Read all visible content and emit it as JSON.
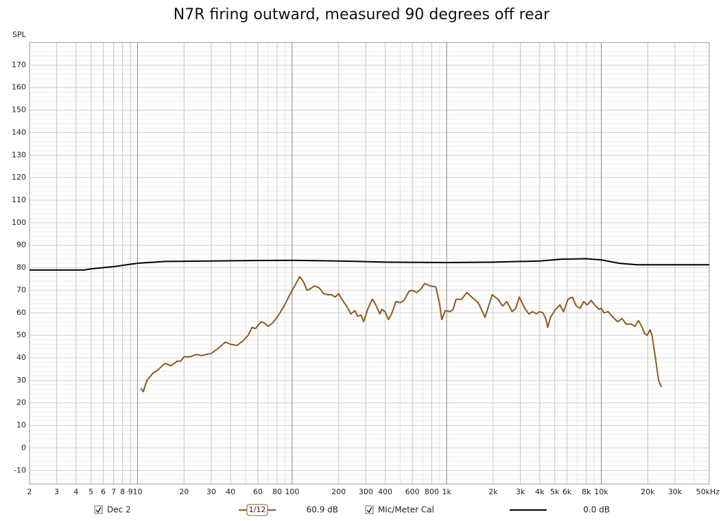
{
  "chart_data": {
    "type": "line",
    "title": "N7R firing outward, measured 90 degrees off rear",
    "y_label": "SPL",
    "log_x": true,
    "grid": true,
    "xlim": [
      2,
      50000
    ],
    "ylim": [
      -16,
      180
    ],
    "yticks": [
      -10,
      0,
      10,
      20,
      30,
      40,
      50,
      60,
      70,
      80,
      90,
      100,
      110,
      120,
      130,
      140,
      150,
      160,
      170
    ],
    "xticks": [
      2,
      3,
      4,
      5,
      6,
      7,
      8,
      9,
      10,
      20,
      30,
      40,
      60,
      80,
      100,
      200,
      300,
      400,
      600,
      800,
      {
        "value": 1000,
        "label": "1k"
      },
      {
        "value": 2000,
        "label": "2k"
      },
      {
        "value": 3000,
        "label": "3k"
      },
      {
        "value": 4000,
        "label": "4k"
      },
      {
        "value": 5000,
        "label": "5k"
      },
      {
        "value": 6000,
        "label": "6k"
      },
      {
        "value": 8000,
        "label": "8k"
      },
      {
        "value": 10000,
        "label": "10k"
      },
      {
        "value": 20000,
        "label": "20k"
      },
      {
        "value": 30000,
        "label": "30k"
      },
      {
        "value": 50000,
        "label": "50kHz"
      }
    ],
    "smoothing": "1/12",
    "series": [
      {
        "name": "Dec 2",
        "color": "#8b5a1b",
        "legend_value": "60.9 dB",
        "x": [
          10.5,
          10.9,
          11.5,
          12.5,
          13.5,
          15,
          16.5,
          18,
          19,
          20,
          22,
          24,
          26,
          30,
          33,
          37,
          40,
          44,
          48,
          52,
          55,
          58,
          63,
          66,
          70,
          75,
          80,
          88,
          95,
          100,
          105,
          112,
          118,
          125,
          130,
          140,
          150,
          160,
          170,
          180,
          190,
          200,
          210,
          230,
          240,
          255,
          265,
          280,
          290,
          310,
          330,
          345,
          370,
          380,
          400,
          420,
          440,
          470,
          500,
          530,
          570,
          600,
          640,
          680,
          720,
          780,
          850,
          900,
          930,
          980,
          1050,
          1100,
          1150,
          1250,
          1350,
          1450,
          1600,
          1770,
          1970,
          2150,
          2300,
          2450,
          2650,
          2800,
          2950,
          3200,
          3400,
          3600,
          3800,
          4000,
          4200,
          4400,
          4500,
          4700,
          5000,
          5400,
          5700,
          6100,
          6500,
          6900,
          7300,
          7700,
          8100,
          8600,
          9200,
          9700,
          10000,
          10400,
          11100,
          11900,
          12800,
          13600,
          14500,
          15600,
          16500,
          17400,
          18300,
          19000,
          19800,
          20700,
          21300,
          22400,
          23500,
          24500
        ],
        "values": [
          26.5,
          25,
          30,
          33,
          34.5,
          37.5,
          36.5,
          38.5,
          38.5,
          40.5,
          40.5,
          41.5,
          41,
          42,
          44,
          47,
          46,
          45.5,
          47.5,
          50,
          53.5,
          53,
          56,
          55.5,
          54,
          55.5,
          58,
          62.5,
          67,
          70,
          72.5,
          76,
          74,
          70,
          70.5,
          72,
          71,
          68.5,
          68,
          68,
          67,
          68.5,
          66,
          62,
          59.5,
          61,
          58.5,
          59,
          56,
          62,
          66,
          64,
          59.5,
          61.5,
          60.5,
          57,
          59.5,
          65,
          64.5,
          65.5,
          69.5,
          70,
          69,
          70.5,
          73,
          72,
          71.5,
          64,
          57,
          61,
          60.5,
          61.5,
          66,
          66,
          69,
          67,
          64.5,
          58,
          68,
          66,
          63,
          65,
          60.5,
          62,
          67,
          62,
          59.5,
          60.5,
          59.5,
          60.5,
          60,
          57,
          53.5,
          58,
          61,
          63.5,
          60.5,
          66,
          67,
          63,
          62,
          65,
          63.5,
          65.5,
          63,
          61.5,
          62,
          60,
          60.5,
          58,
          56,
          57.5,
          55,
          55,
          54,
          56.5,
          54,
          51,
          50,
          52.5,
          50,
          40,
          30,
          27
        ]
      },
      {
        "name": "Mic/Meter Cal",
        "color": "#000000",
        "legend_value": "0.0 dB",
        "x": [
          2,
          4.5,
          5,
          7,
          10,
          15,
          30,
          60,
          100,
          200,
          400,
          1000,
          2000,
          4000,
          5500,
          8000,
          10000,
          13000,
          17000,
          50000
        ],
        "values": [
          79,
          79,
          79.5,
          80.5,
          82,
          82.8,
          83,
          83.2,
          83.3,
          83,
          82.5,
          82.3,
          82.5,
          83,
          83.8,
          84,
          83.5,
          82,
          81.3,
          81.3
        ]
      }
    ]
  }
}
